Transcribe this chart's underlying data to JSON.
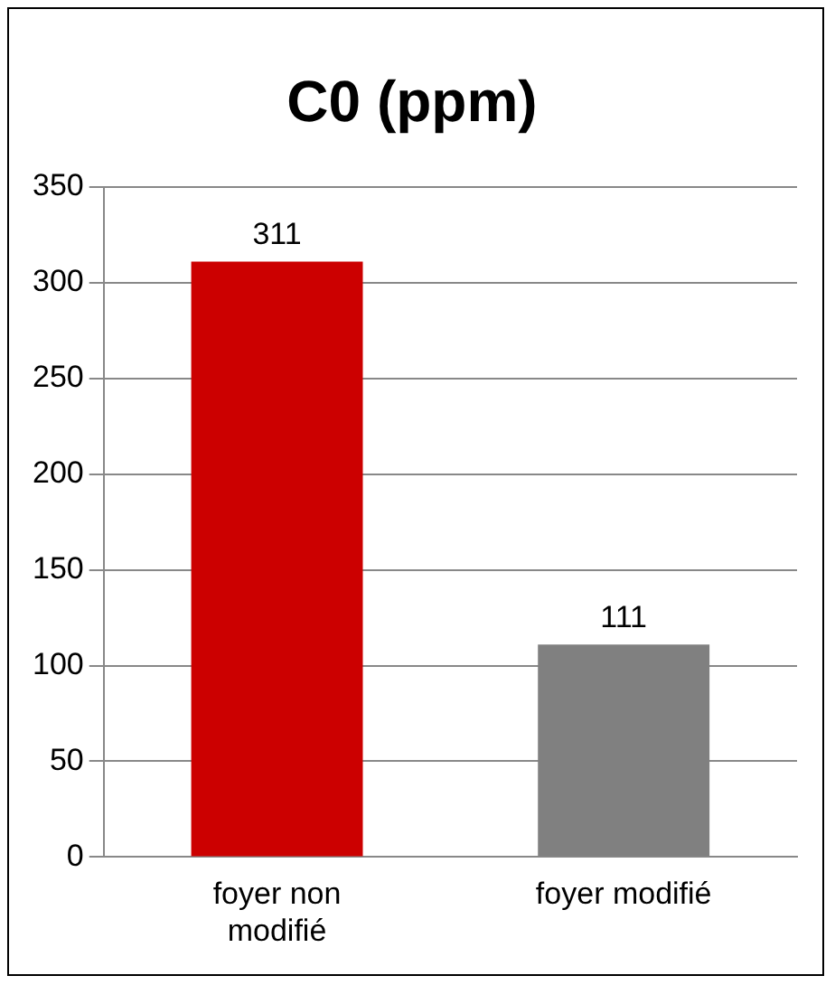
{
  "chart_data": {
    "type": "bar",
    "title": "C0 (ppm)",
    "categories": [
      "foyer non modifié",
      "foyer modifié"
    ],
    "values": [
      311,
      111
    ],
    "colors": [
      "#cc0000",
      "#808080"
    ],
    "ylim": [
      0,
      350
    ],
    "yticks": [
      0,
      50,
      100,
      150,
      200,
      250,
      300,
      350
    ],
    "grid": "y",
    "data_labels": true,
    "legend": false
  }
}
